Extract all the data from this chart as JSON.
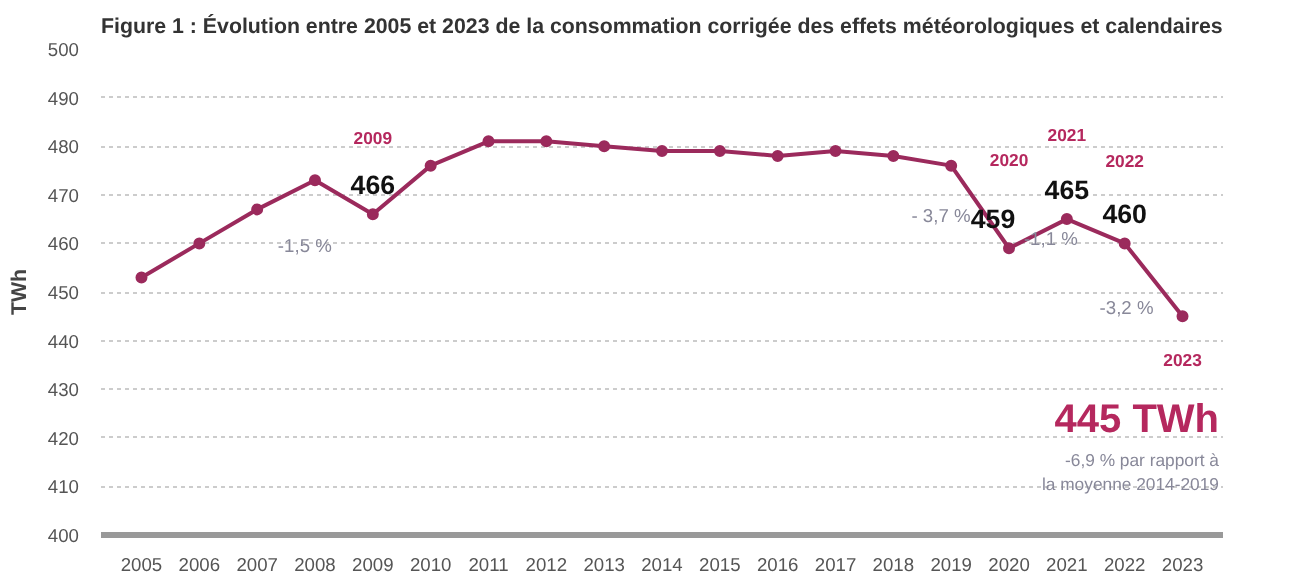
{
  "chart_data": {
    "type": "line",
    "title": "Figure 1 : Évolution entre 2005 et 2023 de la consommation corrigée des effets météorologiques et calendaires",
    "ylabel": "TWh",
    "categories": [
      "2005",
      "2006",
      "2007",
      "2008",
      "2009",
      "2010",
      "2011",
      "2012",
      "2013",
      "2014",
      "2015",
      "2016",
      "2017",
      "2018",
      "2019",
      "2020",
      "2021",
      "2022",
      "2023"
    ],
    "series": [
      {
        "color": "#9b2a5c",
        "values": [
          453,
          460,
          467,
          473,
          466,
          476,
          481,
          481,
          480,
          479,
          479,
          478,
          479,
          478,
          476,
          459,
          465,
          460,
          445
        ],
        "value_labels": [
          null,
          null,
          null,
          null,
          "466",
          null,
          null,
          null,
          null,
          null,
          null,
          null,
          null,
          null,
          null,
          "459",
          "465",
          "460",
          "445 TWh"
        ]
      }
    ],
    "ylim": [
      400,
      500
    ],
    "yticks": [
      400,
      410,
      420,
      430,
      440,
      450,
      460,
      470,
      480,
      490,
      500
    ],
    "grid": "y",
    "marker": "circle",
    "line_style": "solid",
    "annotations": [
      "2009",
      "2020",
      "2021",
      "2022",
      "2023",
      {
        "text": "-1,5 %",
        "x": "2009",
        "y": 466
      },
      {
        "text": "- 3,7 %",
        "x": "2020",
        "y": 459
      },
      {
        "text": "-1,1 %",
        "x": "2021",
        "y": 465
      },
      {
        "text": "-3,2 %",
        "x": "2023",
        "y": 445
      },
      "-6,9 % par rapport à\nla moyenne 2014-2019"
    ]
  }
}
